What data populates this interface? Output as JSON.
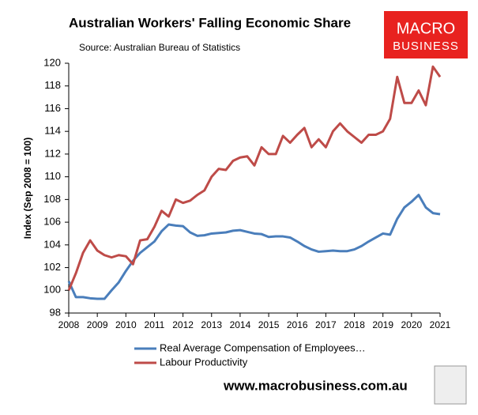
{
  "chart_data": {
    "type": "line",
    "title": "Australian Workers' Falling Economic Share",
    "subtitle": "Source: Australian Bureau of Statistics",
    "ylabel": "Index (Sep 2008 = 100)",
    "logo": [
      "MACRO",
      "BUSINESS"
    ],
    "footer": "www.macrobusiness.com.au",
    "x": [
      2008,
      2008.25,
      2008.5,
      2008.75,
      2009,
      2009.25,
      2009.5,
      2009.75,
      2010,
      2010.25,
      2010.5,
      2010.75,
      2011,
      2011.25,
      2011.5,
      2011.75,
      2012,
      2012.25,
      2012.5,
      2012.75,
      2013,
      2013.25,
      2013.5,
      2013.75,
      2014,
      2014.25,
      2014.5,
      2014.75,
      2015,
      2015.25,
      2015.5,
      2015.75,
      2016,
      2016.25,
      2016.5,
      2016.75,
      2017,
      2017.25,
      2017.5,
      2017.75,
      2018,
      2018.25,
      2018.5,
      2018.75,
      2019,
      2019.25,
      2019.5,
      2019.75,
      2020,
      2020.25,
      2020.5,
      2020.75,
      2021
    ],
    "series": [
      {
        "name": "Real Average Compensation of Employees…",
        "color": "#4a7ebb",
        "values": [
          100.8,
          99.4,
          99.4,
          99.3,
          99.25,
          99.25,
          100.0,
          100.7,
          101.7,
          102.6,
          103.3,
          103.8,
          104.3,
          105.2,
          105.8,
          105.7,
          105.65,
          105.1,
          104.8,
          104.85,
          105.0,
          105.05,
          105.1,
          105.25,
          105.3,
          105.15,
          105.0,
          104.95,
          104.7,
          104.75,
          104.75,
          104.65,
          104.3,
          103.9,
          103.6,
          103.4,
          103.45,
          103.5,
          103.45,
          103.45,
          103.6,
          103.9,
          104.3,
          104.65,
          105.0,
          104.9,
          106.3,
          107.3,
          107.8,
          108.4,
          107.3,
          106.8,
          106.7
        ]
      },
      {
        "name": "Labour Productivity",
        "color": "#be4b48",
        "values": [
          100.0,
          101.5,
          103.3,
          104.4,
          103.5,
          103.1,
          102.9,
          103.1,
          103.0,
          102.3,
          104.4,
          104.5,
          105.6,
          107.0,
          106.5,
          108.0,
          107.7,
          107.9,
          108.4,
          108.8,
          110.0,
          110.7,
          110.6,
          111.4,
          111.7,
          111.8,
          111.0,
          112.6,
          112.0,
          112.0,
          113.6,
          113.0,
          113.7,
          114.3,
          112.6,
          113.3,
          112.6,
          114.0,
          114.7,
          114.0,
          113.5,
          113.0,
          113.7,
          113.7,
          114.0,
          115.1,
          118.8,
          116.5,
          116.5,
          117.6,
          116.3,
          119.7,
          118.8
        ]
      }
    ],
    "xlim": [
      2008,
      2021
    ],
    "xticks": [
      2008,
      2009,
      2010,
      2011,
      2012,
      2013,
      2014,
      2015,
      2016,
      2017,
      2018,
      2019,
      2020,
      2021
    ],
    "ylim": [
      98,
      120
    ],
    "yticks": [
      98,
      100,
      102,
      104,
      106,
      108,
      110,
      112,
      114,
      116,
      118,
      120
    ],
    "grid": false,
    "legend": "bottom"
  }
}
